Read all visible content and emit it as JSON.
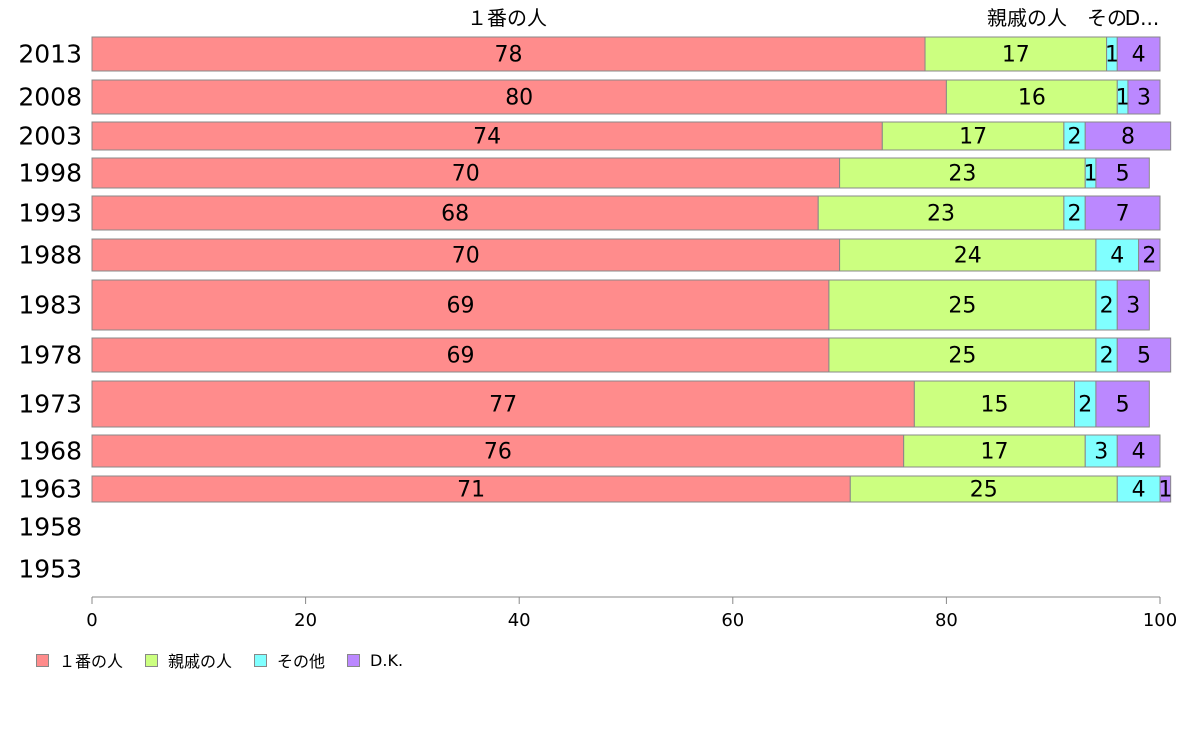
{
  "chart_data": {
    "type": "bar",
    "orientation": "horizontal",
    "stacked": true,
    "categories": [
      "2013",
      "2008",
      "2003",
      "1998",
      "1993",
      "1988",
      "1983",
      "1978",
      "1973",
      "1968",
      "1963",
      "1958",
      "1953"
    ],
    "series": [
      {
        "name": "１番の人",
        "color": "#ff8c8c",
        "values": [
          78,
          80,
          74,
          70,
          68,
          70,
          69,
          69,
          77,
          76,
          71,
          null,
          null
        ]
      },
      {
        "name": "親戚の人",
        "color": "#ccff80",
        "values": [
          17,
          16,
          17,
          23,
          23,
          24,
          25,
          25,
          15,
          17,
          25,
          null,
          null
        ]
      },
      {
        "name": "その他",
        "color": "#80ffff",
        "values": [
          1,
          1,
          2,
          1,
          2,
          4,
          2,
          2,
          2,
          3,
          4,
          null,
          null
        ]
      },
      {
        "name": "D.K.",
        "color": "#bb88ff",
        "values": [
          4,
          3,
          8,
          5,
          7,
          2,
          3,
          5,
          5,
          4,
          1,
          null,
          null
        ]
      }
    ],
    "top_labels": [
      "１番の人",
      "親戚の人",
      "その",
      "D..."
    ],
    "xlim": [
      0,
      100
    ],
    "xticks": [
      0,
      20,
      40,
      60,
      80,
      100
    ],
    "grid": false,
    "legend_position": "bottom-left"
  }
}
